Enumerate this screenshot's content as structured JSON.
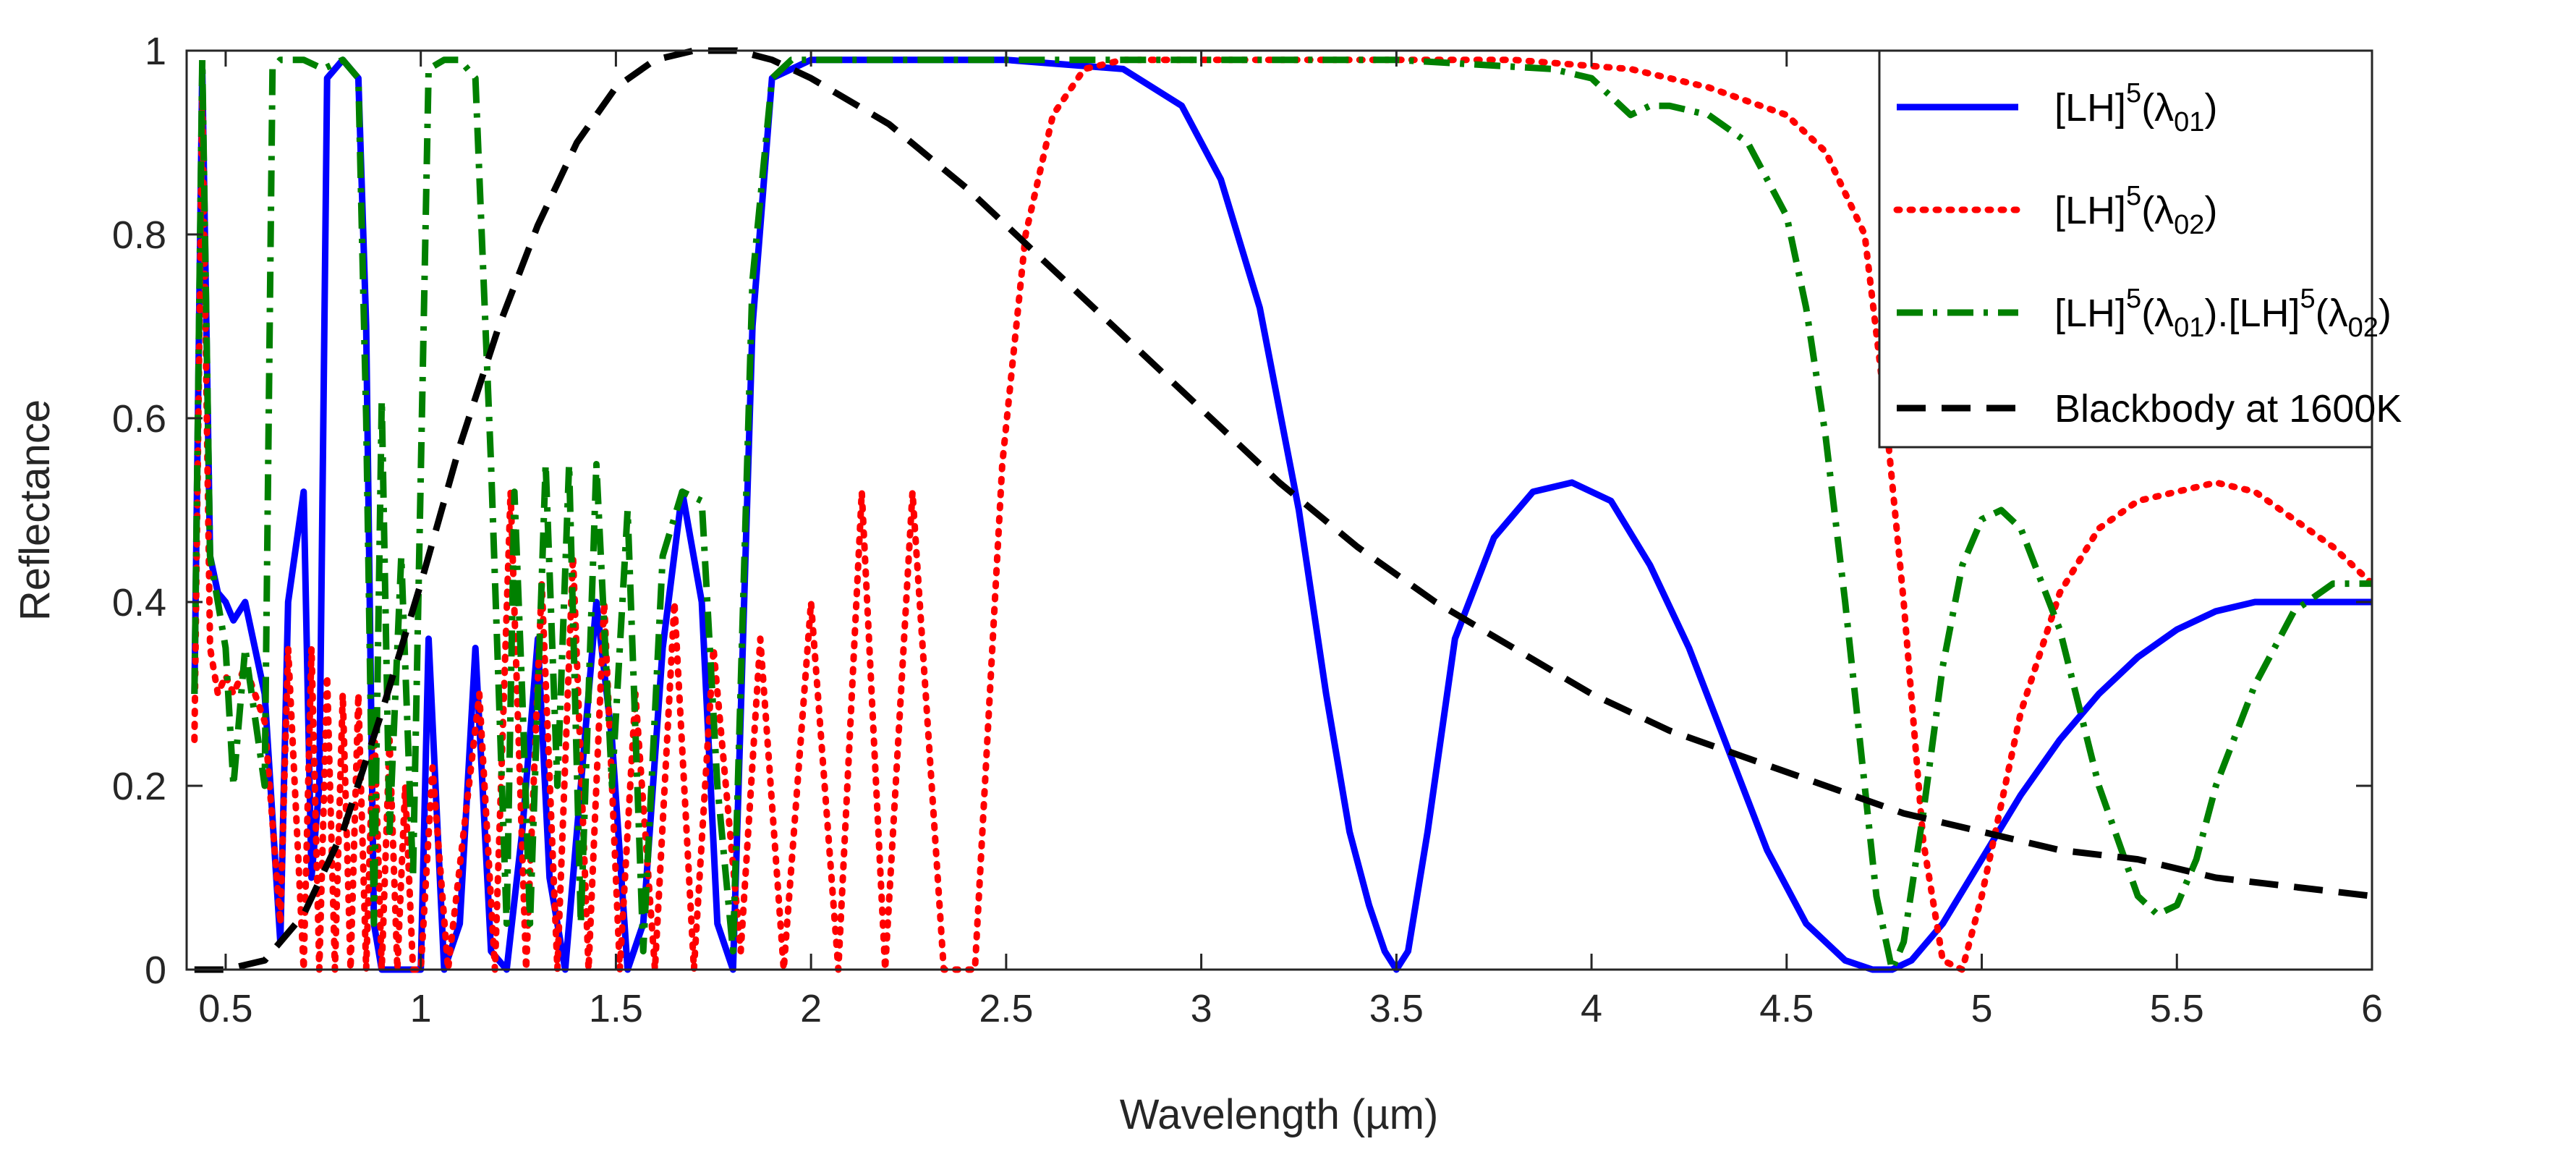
{
  "chart_data": {
    "type": "line",
    "title": "",
    "xlabel": "Wavelength (µm)",
    "ylabel": "Reflectance",
    "xlim": [
      0.4,
      6
    ],
    "ylim": [
      0,
      1
    ],
    "xticks": [
      0.5,
      1,
      1.5,
      2,
      2.5,
      3,
      3.5,
      4,
      4.5,
      5,
      5.5,
      6
    ],
    "xtick_labels": [
      "0.5",
      "1",
      "1.5",
      "2",
      "2.5",
      "3",
      "3.5",
      "4",
      "4.5",
      "5",
      "5.5",
      "6"
    ],
    "yticks": [
      0,
      0.2,
      0.4,
      0.6,
      0.8,
      1
    ],
    "ytick_labels": [
      "0",
      "0.2",
      "0.4",
      "0.6",
      "0.8",
      "1"
    ],
    "grid": false,
    "legend_position": "top-right",
    "series": [
      {
        "name": "[LH]5(λ01)",
        "legend_parts": [
          [
            "",
            "[LH]"
          ],
          [
            "sup",
            "5"
          ],
          [
            "",
            "(λ"
          ],
          [
            "sub",
            "01"
          ],
          [
            "",
            ")"
          ]
        ],
        "color": "#0000ff",
        "style": "solid",
        "x": [
          0.42,
          0.44,
          0.46,
          0.48,
          0.5,
          0.52,
          0.55,
          0.6,
          0.64,
          0.66,
          0.7,
          0.72,
          0.74,
          0.76,
          0.8,
          0.84,
          0.86,
          0.88,
          0.9,
          0.93,
          0.96,
          1.0,
          1.02,
          1.06,
          1.1,
          1.14,
          1.18,
          1.22,
          1.26,
          1.3,
          1.33,
          1.37,
          1.41,
          1.45,
          1.49,
          1.53,
          1.57,
          1.62,
          1.67,
          1.72,
          1.76,
          1.8,
          1.85,
          1.9,
          1.95,
          2.0,
          2.1,
          2.2,
          2.5,
          2.8,
          2.95,
          3.05,
          3.15,
          3.25,
          3.32,
          3.38,
          3.43,
          3.47,
          3.5,
          3.53,
          3.58,
          3.65,
          3.75,
          3.85,
          3.95,
          4.05,
          4.15,
          4.25,
          4.35,
          4.45,
          4.55,
          4.65,
          4.72,
          4.77,
          4.82,
          4.9,
          5.0,
          5.1,
          5.2,
          5.3,
          5.4,
          5.5,
          5.6,
          5.7,
          5.8,
          5.9,
          6.0
        ],
        "y": [
          0.3,
          0.98,
          0.45,
          0.41,
          0.4,
          0.38,
          0.4,
          0.3,
          0.03,
          0.4,
          0.52,
          0.1,
          0.2,
          0.97,
          0.99,
          0.97,
          0.7,
          0.05,
          0.0,
          0.0,
          0.0,
          0.0,
          0.36,
          0.0,
          0.05,
          0.35,
          0.02,
          0.0,
          0.15,
          0.36,
          0.1,
          0.0,
          0.2,
          0.4,
          0.25,
          0.0,
          0.05,
          0.35,
          0.52,
          0.4,
          0.05,
          0.0,
          0.7,
          0.97,
          0.98,
          0.99,
          0.99,
          0.99,
          0.99,
          0.98,
          0.94,
          0.86,
          0.72,
          0.5,
          0.3,
          0.15,
          0.07,
          0.02,
          0.0,
          0.02,
          0.15,
          0.36,
          0.47,
          0.52,
          0.53,
          0.51,
          0.44,
          0.35,
          0.24,
          0.13,
          0.05,
          0.01,
          0.0,
          0.0,
          0.01,
          0.05,
          0.12,
          0.19,
          0.25,
          0.3,
          0.34,
          0.37,
          0.39,
          0.4,
          0.4,
          0.4,
          0.4
        ]
      },
      {
        "name": "[LH]5(λ02)",
        "legend_parts": [
          [
            "",
            "[LH]"
          ],
          [
            "sup",
            "5"
          ],
          [
            "",
            "(λ"
          ],
          [
            "sub",
            "02"
          ],
          [
            "",
            ")"
          ]
        ],
        "color": "#ff0000",
        "style": "dotted",
        "x": [
          0.42,
          0.44,
          0.46,
          0.48,
          0.5,
          0.52,
          0.55,
          0.6,
          0.64,
          0.66,
          0.7,
          0.72,
          0.74,
          0.76,
          0.78,
          0.8,
          0.82,
          0.84,
          0.86,
          0.88,
          0.9,
          0.92,
          0.94,
          0.96,
          0.98,
          1.0,
          1.03,
          1.07,
          1.11,
          1.15,
          1.19,
          1.23,
          1.27,
          1.31,
          1.35,
          1.39,
          1.43,
          1.47,
          1.51,
          1.55,
          1.6,
          1.65,
          1.7,
          1.75,
          1.82,
          1.87,
          1.93,
          2.0,
          2.07,
          2.13,
          2.19,
          2.26,
          2.34,
          2.42,
          2.49,
          2.55,
          2.62,
          2.7,
          2.8,
          2.9,
          3.0,
          3.2,
          3.5,
          3.8,
          4.1,
          4.3,
          4.5,
          4.6,
          4.7,
          4.75,
          4.8,
          4.85,
          4.9,
          4.95,
          5.0,
          5.1,
          5.2,
          5.3,
          5.4,
          5.5,
          5.6,
          5.7,
          5.8,
          5.9,
          6.0
        ],
        "y": [
          0.25,
          0.95,
          0.35,
          0.3,
          0.32,
          0.3,
          0.33,
          0.27,
          0.05,
          0.35,
          0.0,
          0.35,
          0.0,
          0.32,
          0.0,
          0.3,
          0.0,
          0.3,
          0.0,
          0.28,
          0.0,
          0.25,
          0.0,
          0.2,
          0.0,
          0.0,
          0.22,
          0.0,
          0.15,
          0.3,
          0.0,
          0.52,
          0.0,
          0.42,
          0.0,
          0.45,
          0.0,
          0.4,
          0.0,
          0.3,
          0.0,
          0.4,
          0.0,
          0.35,
          0.02,
          0.36,
          0.0,
          0.4,
          0.0,
          0.52,
          0.0,
          0.52,
          0.0,
          0.0,
          0.55,
          0.8,
          0.93,
          0.98,
          0.99,
          0.99,
          0.99,
          0.99,
          0.99,
          0.99,
          0.98,
          0.96,
          0.93,
          0.89,
          0.8,
          0.62,
          0.4,
          0.14,
          0.01,
          0.0,
          0.08,
          0.28,
          0.41,
          0.48,
          0.51,
          0.52,
          0.53,
          0.52,
          0.49,
          0.46,
          0.42
        ]
      },
      {
        "name": "[LH]5(λ01).[LH]5(λ02)",
        "legend_parts": [
          [
            "",
            "[LH]"
          ],
          [
            "sup",
            "5"
          ],
          [
            "",
            "(λ"
          ],
          [
            "sub",
            "01"
          ],
          [
            "",
            ").[LH]"
          ],
          [
            "sup",
            "5"
          ],
          [
            "",
            "(λ"
          ],
          [
            "sub",
            "02"
          ],
          [
            "",
            ")"
          ]
        ],
        "color": "#008000",
        "style": "dashdot",
        "x": [
          0.42,
          0.44,
          0.46,
          0.48,
          0.5,
          0.52,
          0.55,
          0.6,
          0.62,
          0.64,
          0.66,
          0.7,
          0.75,
          0.8,
          0.84,
          0.86,
          0.88,
          0.9,
          0.92,
          0.95,
          0.98,
          1.02,
          1.06,
          1.1,
          1.14,
          1.18,
          1.2,
          1.22,
          1.24,
          1.26,
          1.28,
          1.32,
          1.35,
          1.38,
          1.41,
          1.45,
          1.49,
          1.53,
          1.57,
          1.62,
          1.67,
          1.72,
          1.76,
          1.8,
          1.85,
          1.9,
          1.95,
          2.0,
          2.2,
          2.5,
          2.8,
          3.0,
          3.5,
          3.9,
          4.0,
          4.05,
          4.1,
          4.15,
          4.2,
          4.3,
          4.4,
          4.5,
          4.55,
          4.6,
          4.65,
          4.7,
          4.73,
          4.77,
          4.8,
          4.85,
          4.9,
          4.95,
          5.0,
          5.05,
          5.1,
          5.2,
          5.3,
          5.4,
          5.45,
          5.5,
          5.55,
          5.6,
          5.7,
          5.8,
          5.9,
          6.0
        ],
        "y": [
          0.3,
          0.99,
          0.45,
          0.4,
          0.35,
          0.2,
          0.35,
          0.2,
          0.98,
          0.99,
          0.99,
          0.99,
          0.98,
          0.99,
          0.97,
          0.6,
          0.05,
          0.62,
          0.15,
          0.45,
          0.1,
          0.98,
          0.99,
          0.99,
          0.97,
          0.55,
          0.3,
          0.05,
          0.52,
          0.3,
          0.05,
          0.55,
          0.2,
          0.55,
          0.05,
          0.55,
          0.2,
          0.5,
          0.02,
          0.45,
          0.52,
          0.51,
          0.2,
          0.02,
          0.75,
          0.97,
          0.99,
          0.99,
          0.99,
          0.99,
          0.99,
          0.99,
          0.99,
          0.98,
          0.97,
          0.95,
          0.93,
          0.94,
          0.94,
          0.93,
          0.9,
          0.82,
          0.72,
          0.58,
          0.4,
          0.2,
          0.08,
          0.0,
          0.03,
          0.17,
          0.33,
          0.44,
          0.49,
          0.5,
          0.48,
          0.37,
          0.2,
          0.08,
          0.06,
          0.07,
          0.12,
          0.2,
          0.31,
          0.39,
          0.42,
          0.42
        ]
      },
      {
        "name": "Blackbody at 1600K",
        "legend_parts": [
          [
            "",
            "Blackbody at 1600K"
          ]
        ],
        "color": "#000000",
        "style": "dashed",
        "x": [
          0.42,
          0.5,
          0.6,
          0.7,
          0.8,
          0.9,
          1.0,
          1.1,
          1.2,
          1.3,
          1.4,
          1.5,
          1.6,
          1.7,
          1.81,
          1.9,
          2.0,
          2.2,
          2.4,
          2.6,
          2.8,
          3.0,
          3.2,
          3.4,
          3.6,
          3.8,
          4.0,
          4.2,
          4.4,
          4.6,
          4.8,
          5.0,
          5.2,
          5.4,
          5.6,
          5.8,
          6.0
        ],
        "y": [
          0.0,
          0.0,
          0.01,
          0.06,
          0.15,
          0.28,
          0.42,
          0.57,
          0.7,
          0.81,
          0.9,
          0.96,
          0.99,
          1.0,
          1.0,
          0.99,
          0.97,
          0.92,
          0.85,
          0.77,
          0.69,
          0.61,
          0.53,
          0.46,
          0.4,
          0.35,
          0.3,
          0.26,
          0.23,
          0.2,
          0.17,
          0.15,
          0.13,
          0.12,
          0.1,
          0.09,
          0.08
        ]
      }
    ]
  }
}
